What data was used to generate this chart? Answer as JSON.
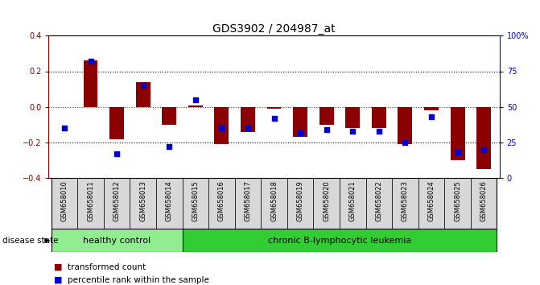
{
  "title": "GDS3902 / 204987_at",
  "samples": [
    "GSM658010",
    "GSM658011",
    "GSM658012",
    "GSM658013",
    "GSM658014",
    "GSM658015",
    "GSM658016",
    "GSM658017",
    "GSM658018",
    "GSM658019",
    "GSM658020",
    "GSM658021",
    "GSM658022",
    "GSM658023",
    "GSM658024",
    "GSM658025",
    "GSM658026"
  ],
  "red_values": [
    0.0,
    0.26,
    -0.18,
    0.14,
    -0.1,
    0.01,
    -0.21,
    -0.14,
    -0.01,
    -0.17,
    -0.1,
    -0.12,
    -0.12,
    -0.21,
    -0.02,
    -0.3,
    -0.35
  ],
  "blue_values_pct": [
    35,
    82,
    17,
    65,
    22,
    55,
    35,
    35,
    42,
    32,
    34,
    33,
    33,
    25,
    43,
    18,
    20
  ],
  "ylim_left": [
    -0.4,
    0.4
  ],
  "ylim_right": [
    0,
    100
  ],
  "healthy_count": 5,
  "leukemia_count": 12,
  "healthy_label": "healthy control",
  "leukemia_label": "chronic B-lymphocytic leukemia",
  "disease_state_label": "disease state",
  "legend_red": "transformed count",
  "legend_blue": "percentile rank within the sample",
  "yticks_left": [
    -0.4,
    -0.2,
    0.0,
    0.2,
    0.4
  ],
  "yticks_right": [
    0,
    25,
    50,
    75,
    100
  ],
  "ytick_labels_right": [
    "0",
    "25",
    "50",
    "75",
    "100%"
  ],
  "red_color": "#8B0000",
  "blue_color": "#0000CD",
  "healthy_bg": "#90EE90",
  "leukemia_bg": "#32CD32",
  "bar_width": 0.55
}
